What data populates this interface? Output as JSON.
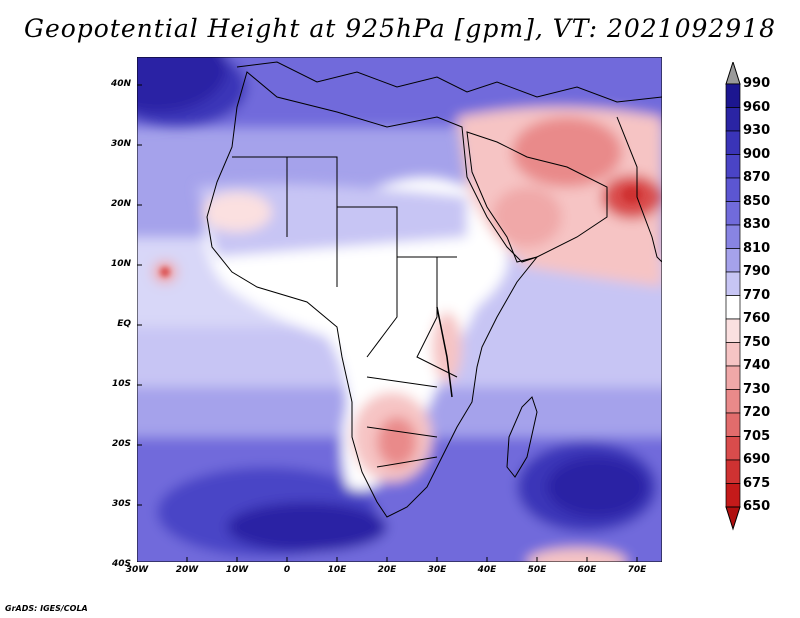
{
  "title": "Geopotential Height at 925hPa [gpm], VT: 2021092918",
  "credit": "GrADS: IGES/COLA",
  "map": {
    "region": "Africa and Arabian Peninsula",
    "variable": "Geopotential Height",
    "level": "925hPa",
    "units": "gpm",
    "valid_time": "2021092918",
    "lon_range": [
      -30,
      75
    ],
    "lat_range": [
      -40,
      45
    ],
    "lat_labels": [
      "40N",
      "30N",
      "20N",
      "10N",
      "EQ",
      "10S",
      "20S",
      "30S",
      "40S"
    ],
    "lon_labels": [
      "30W",
      "20W",
      "10W",
      "0",
      "10E",
      "20E",
      "30E",
      "40E",
      "50E",
      "60E",
      "70E"
    ]
  },
  "colorbar": {
    "levels": [
      "990",
      "960",
      "930",
      "900",
      "870",
      "850",
      "830",
      "810",
      "790",
      "770",
      "760",
      "750",
      "740",
      "730",
      "720",
      "705",
      "690",
      "675",
      "650"
    ],
    "colors": [
      "#9a9a9a",
      "#1c1690",
      "#2a24a4",
      "#3a34b8",
      "#4a44c6",
      "#5c56d2",
      "#716bdb",
      "#8884e3",
      "#a5a2eb",
      "#c7c5f4",
      "#ffffff",
      "#fbe0e0",
      "#f6c4c4",
      "#f0a8a8",
      "#e98a8a",
      "#e26c6c",
      "#d94c4c",
      "#cf3232",
      "#c41a1a",
      "#b01010"
    ]
  }
}
